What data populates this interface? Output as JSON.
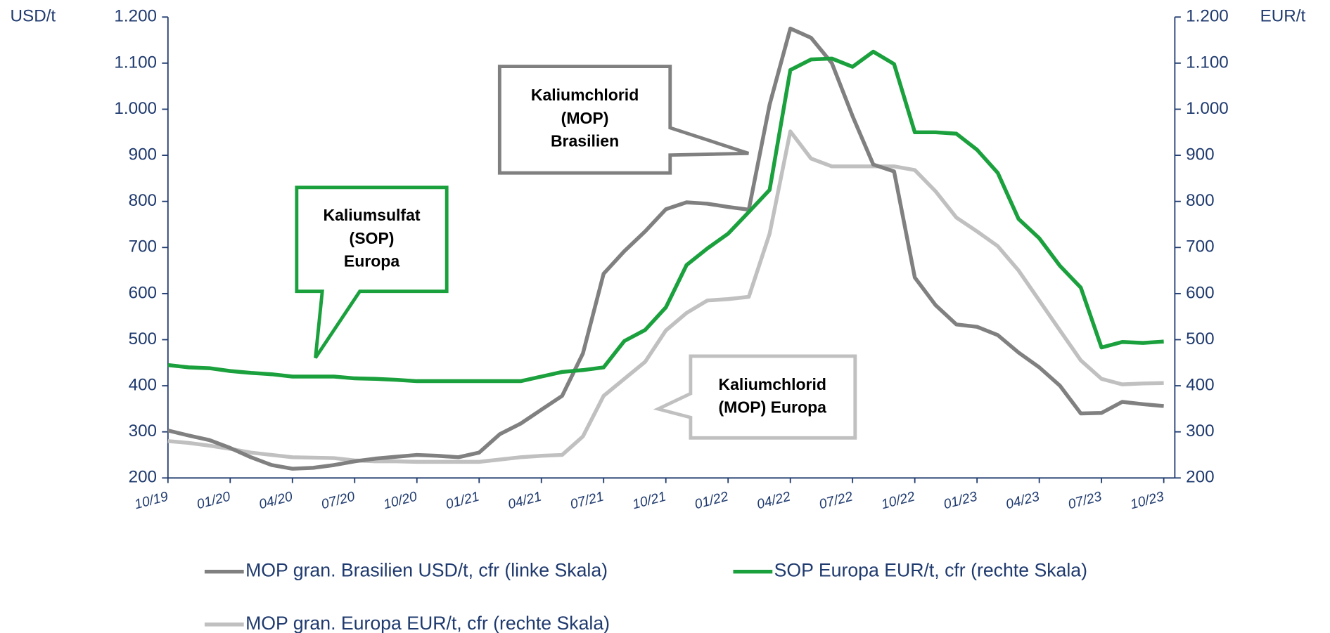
{
  "chart_data": {
    "type": "line",
    "ylabel": "USD/t",
    "y2label": "EUR/t",
    "categories": [
      "10/19",
      null,
      null,
      "01/20",
      null,
      null,
      "04/20",
      null,
      null,
      "07/20",
      null,
      null,
      "10/20",
      null,
      null,
      "01/21",
      null,
      null,
      "04/21",
      null,
      null,
      "07/21",
      null,
      null,
      "10/21",
      null,
      null,
      "01/22",
      null,
      null,
      "04/22",
      null,
      null,
      "07/22",
      null,
      null,
      "10/22",
      null,
      null,
      "01/23",
      null,
      null,
      "04/23",
      null,
      null,
      "07/23",
      null,
      null,
      "10/23"
    ],
    "ylim": [
      200,
      1200
    ],
    "yticks": [
      200,
      300,
      400,
      500,
      600,
      700,
      800,
      900,
      {
        "value": 1000,
        "label": "1.000"
      },
      {
        "value": 1100,
        "label": "1.100"
      },
      {
        "value": 1200,
        "label": "1.200"
      }
    ],
    "y2lim": [
      200,
      1200
    ],
    "y2ticks": [
      200,
      300,
      400,
      500,
      600,
      700,
      800,
      900,
      {
        "value": 1000,
        "label": "1.000"
      },
      {
        "value": 1100,
        "label": "1.100"
      },
      {
        "value": 1200,
        "label": "1.200"
      }
    ],
    "series": [
      {
        "name": "MOP gran. Brasilien USD/t, cfr (linke Skala)",
        "color": "#808080",
        "axis": "y",
        "values": [
          303,
          292,
          282,
          265,
          245,
          228,
          220,
          222,
          228,
          236,
          242,
          246,
          250,
          248,
          245,
          255,
          295,
          318,
          348,
          378,
          470,
          643,
          692,
          735,
          783,
          798,
          795,
          788,
          782,
          1010,
          1175,
          1155,
          1100,
          985,
          880,
          865,
          635,
          575,
          533,
          528,
          510,
          472,
          440,
          400,
          340,
          341,
          365,
          360,
          356
        ]
      },
      {
        "name": "SOP Europa EUR/t, cfr (rechte Skala)",
        "color": "#1aa03c",
        "axis": "y2",
        "values": [
          445,
          440,
          438,
          432,
          428,
          425,
          420,
          420,
          420,
          416,
          415,
          413,
          410,
          410,
          410,
          410,
          410,
          410,
          420,
          430,
          434,
          440,
          497,
          521,
          570,
          662,
          698,
          730,
          777,
          825,
          1085,
          1108,
          1110,
          1092,
          1125,
          1098,
          950,
          950,
          947,
          912,
          862,
          762,
          720,
          660,
          613,
          483,
          495,
          493,
          496
        ]
      },
      {
        "name": "MOP gran. Europa EUR/t, cfr (rechte Skala)",
        "color": "#c0c0c0",
        "axis": "y2",
        "values": [
          280,
          276,
          270,
          263,
          255,
          250,
          245,
          244,
          243,
          238,
          236,
          236,
          235,
          235,
          235,
          235,
          240,
          245,
          248,
          250,
          290,
          378,
          415,
          452,
          520,
          558,
          585,
          588,
          593,
          730,
          952,
          893,
          876,
          876,
          876,
          876,
          868,
          822,
          765,
          735,
          703,
          650,
          585,
          520,
          455,
          415,
          403,
          405,
          406
        ]
      }
    ],
    "annotations": [
      {
        "lines": [
          "Kaliumchlorid",
          "(MOP)",
          "Brasilien"
        ],
        "color": "#808080"
      },
      {
        "lines": [
          "Kaliumsulfat",
          "(SOP)",
          "Europa"
        ],
        "color": "#1aa03c"
      },
      {
        "lines": [
          "Kaliumchlorid",
          "(MOP) Europa"
        ],
        "color": "#c0c0c0"
      }
    ]
  }
}
